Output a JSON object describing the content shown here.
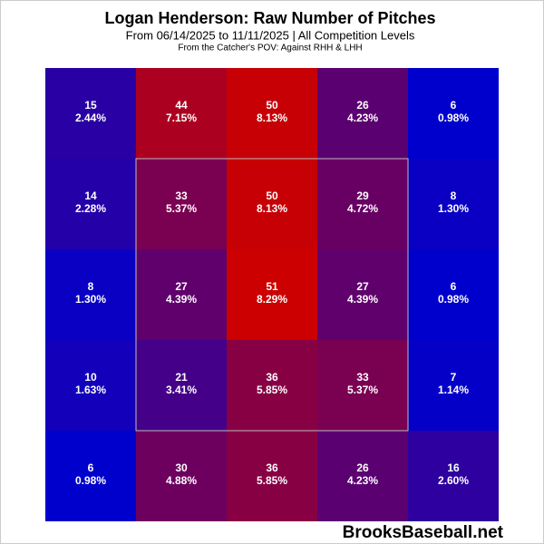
{
  "chart_data": {
    "type": "heatmap",
    "title": "Logan Henderson: Raw Number of Pitches",
    "subtitle": "From 06/14/2025 to 11/11/2025 | All Competition Levels",
    "note": "From the Catcher's POV:   Against RHH & LHH",
    "watermark": "BrooksBaseball.net",
    "values": [
      [
        15,
        44,
        50,
        26,
        6
      ],
      [
        14,
        33,
        50,
        29,
        8
      ],
      [
        8,
        27,
        51,
        27,
        6
      ],
      [
        10,
        21,
        36,
        33,
        7
      ],
      [
        6,
        30,
        36,
        26,
        16
      ]
    ],
    "percent_labels": [
      [
        "2.44%",
        "7.15%",
        "8.13%",
        "4.23%",
        "0.98%"
      ],
      [
        "2.28%",
        "5.37%",
        "8.13%",
        "4.72%",
        "1.30%"
      ],
      [
        "1.30%",
        "4.39%",
        "8.29%",
        "4.39%",
        "0.98%"
      ],
      [
        "1.63%",
        "3.41%",
        "5.85%",
        "5.37%",
        "1.14%"
      ],
      [
        "0.98%",
        "4.88%",
        "5.85%",
        "4.23%",
        "2.60%"
      ]
    ],
    "color_low": "#0000cc",
    "color_high": "#cc0000",
    "strike_zone": true
  }
}
